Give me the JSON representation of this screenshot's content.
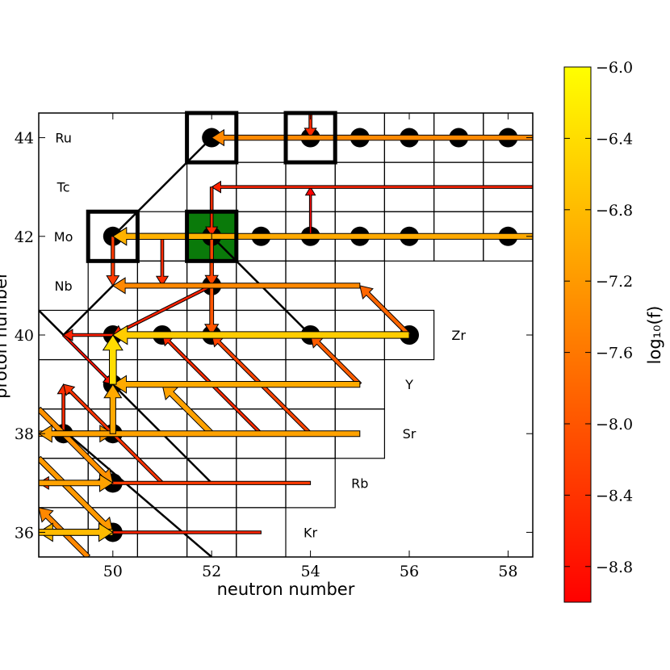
{
  "chart_data": {
    "type": "heatmap",
    "subtype": "nuclide chart reaction flow network",
    "xlabel": "neutron number",
    "ylabel": "proton number",
    "xlim": [
      48.5,
      58.5
    ],
    "ylim": [
      35.5,
      44.5
    ],
    "xticks": [
      50,
      52,
      54,
      56,
      58
    ],
    "yticks": [
      36,
      38,
      40,
      42,
      44
    ],
    "colorbar": {
      "label": "log₁₀(f)",
      "range": [
        -9.0,
        -6.0
      ],
      "ticks": [
        -6.0,
        -6.4,
        -6.8,
        -7.2,
        -7.6,
        -8.0,
        -8.4,
        -8.8
      ],
      "tick_labels": [
        "−6.0",
        "−6.4",
        "−6.8",
        "−7.2",
        "−7.6",
        "−8.0",
        "−8.4",
        "−8.8"
      ],
      "colors": [
        "#ff0000",
        "#ff8000",
        "#ffff00"
      ]
    },
    "element_labels": [
      {
        "label": "Ru",
        "n": 49,
        "z": 44
      },
      {
        "label": "Tc",
        "n": 49,
        "z": 43
      },
      {
        "label": "Mo",
        "n": 49,
        "z": 42
      },
      {
        "label": "Nb",
        "n": 49,
        "z": 41
      },
      {
        "label": "Zr",
        "n": 57,
        "z": 40
      },
      {
        "label": "Y",
        "n": 56,
        "z": 39
      },
      {
        "label": "Sr",
        "n": 56,
        "z": 38
      },
      {
        "label": "Rb",
        "n": 55,
        "z": 37
      },
      {
        "label": "Kr",
        "n": 54,
        "z": 36
      }
    ],
    "isotope_rows": [
      {
        "z": 44,
        "n_min": 52,
        "n_max": 58
      },
      {
        "z": 43,
        "n_min": 52,
        "n_max": 58
      },
      {
        "z": 42,
        "n_min": 50,
        "n_max": 58
      },
      {
        "z": 41,
        "n_min": 50,
        "n_max": 55
      },
      {
        "z": 40,
        "n_min": 48,
        "n_max": 56
      },
      {
        "z": 39,
        "n_min": 48,
        "n_max": 55
      },
      {
        "z": 38,
        "n_min": 48,
        "n_max": 55
      },
      {
        "z": 37,
        "n_min": 48,
        "n_max": 54
      },
      {
        "z": 36,
        "n_min": 48,
        "n_max": 53
      }
    ],
    "stable_nuclei": [
      [
        52,
        44
      ],
      [
        54,
        44
      ],
      [
        55,
        44
      ],
      [
        56,
        44
      ],
      [
        57,
        44
      ],
      [
        58,
        44
      ],
      [
        50,
        42
      ],
      [
        52,
        42
      ],
      [
        53,
        42
      ],
      [
        54,
        42
      ],
      [
        55,
        42
      ],
      [
        56,
        42
      ],
      [
        58,
        42
      ],
      [
        52,
        41
      ],
      [
        50,
        40
      ],
      [
        51,
        40
      ],
      [
        52,
        40
      ],
      [
        54,
        40
      ],
      [
        56,
        40
      ],
      [
        50,
        39
      ],
      [
        49,
        38
      ],
      [
        50,
        38
      ],
      [
        50,
        37
      ],
      [
        50,
        36
      ]
    ],
    "p_nuclei": [
      [
        52,
        44
      ],
      [
        54,
        44
      ],
      [
        50,
        42
      ],
      [
        52,
        42
      ]
    ],
    "highlighted_nucleus": [
      52,
      42
    ],
    "flows": [
      {
        "from": [
          58.5,
          44
        ],
        "to": [
          52,
          44
        ],
        "log_f": -7.4
      },
      {
        "from": [
          54,
          44.5
        ],
        "to": [
          54,
          44
        ],
        "log_f": -8.5
      },
      {
        "from": [
          58.5,
          43
        ],
        "to": [
          52,
          43
        ],
        "log_f": -8.6
      },
      {
        "from": [
          54,
          42
        ],
        "to": [
          54,
          43
        ],
        "log_f": -9.0
      },
      {
        "from": [
          52,
          43
        ],
        "to": [
          52,
          42
        ],
        "log_f": -8.5
      },
      {
        "from": [
          58.5,
          42
        ],
        "to": [
          50,
          42
        ],
        "log_f": -7.0
      },
      {
        "from": [
          52,
          42
        ],
        "to": [
          50,
          42
        ],
        "log_f": -6.9
      },
      {
        "from": [
          50,
          42
        ],
        "to": [
          50,
          41
        ],
        "log_f": -8.3
      },
      {
        "from": [
          51,
          42
        ],
        "to": [
          51,
          41
        ],
        "log_f": -8.5
      },
      {
        "from": [
          52,
          42
        ],
        "to": [
          52,
          41
        ],
        "log_f": -8.2
      },
      {
        "from": [
          55,
          41
        ],
        "to": [
          50,
          41
        ],
        "log_f": -7.4
      },
      {
        "from": [
          56,
          40
        ],
        "to": [
          55,
          41
        ],
        "log_f": -7.8
      },
      {
        "from": [
          56,
          40
        ],
        "to": [
          50,
          40
        ],
        "log_f": -6.6
      },
      {
        "from": [
          52,
          41
        ],
        "to": [
          52,
          40
        ],
        "log_f": -8.0
      },
      {
        "from": [
          52,
          41
        ],
        "to": [
          50,
          40
        ],
        "log_f": -8.6
      },
      {
        "from": [
          51,
          40
        ],
        "to": [
          49,
          40
        ],
        "log_f": -8.6
      },
      {
        "from": [
          49,
          40
        ],
        "to": [
          50,
          39
        ],
        "log_f": -8.8
      },
      {
        "from": [
          50,
          39
        ],
        "to": [
          50,
          40
        ],
        "log_f": -6.4
      },
      {
        "from": [
          50,
          38
        ],
        "to": [
          50,
          39
        ],
        "log_f": -7.0
      },
      {
        "from": [
          55,
          39
        ],
        "to": [
          50,
          39
        ],
        "log_f": -7.0
      },
      {
        "from": [
          55,
          39
        ],
        "to": [
          54,
          40
        ],
        "log_f": -7.9
      },
      {
        "from": [
          54,
          38
        ],
        "to": [
          52,
          40
        ],
        "log_f": -8.2
      },
      {
        "from": [
          53,
          38
        ],
        "to": [
          51,
          40
        ],
        "log_f": -8.5
      },
      {
        "from": [
          52,
          38
        ],
        "to": [
          51,
          39
        ],
        "log_f": -7.1
      },
      {
        "from": [
          55,
          38
        ],
        "to": [
          48.5,
          38
        ],
        "log_f": -7.1
      },
      {
        "from": [
          53,
          39
        ],
        "to": [
          50,
          39
        ],
        "log_f": -8.0
      },
      {
        "from": [
          51,
          37
        ],
        "to": [
          49,
          39
        ],
        "log_f": -8.4
      },
      {
        "from": [
          54,
          37
        ],
        "to": [
          48.5,
          37
        ],
        "log_f": -8.3
      },
      {
        "from": [
          48.5,
          37.5
        ],
        "to": [
          50,
          36
        ],
        "log_f": -7.2
      },
      {
        "from": [
          48.5,
          38.5
        ],
        "to": [
          50,
          37
        ],
        "log_f": -7.3
      },
      {
        "from": [
          53,
          36
        ],
        "to": [
          48.5,
          36
        ],
        "log_f": -8.6
      },
      {
        "from": [
          50,
          36
        ],
        "to": [
          48.5,
          36
        ],
        "log_f": -6.8
      },
      {
        "from": [
          49,
          38
        ],
        "to": [
          49,
          39
        ],
        "log_f": -8.5
      },
      {
        "from": [
          48.5,
          36
        ],
        "to": [
          50,
          36
        ],
        "log_f": -6.8
      },
      {
        "from": [
          48.5,
          37
        ],
        "to": [
          50,
          37
        ],
        "log_f": -7.1
      },
      {
        "from": [
          48.5,
          38
        ],
        "to": [
          50,
          38
        ],
        "log_f": -7.2
      },
      {
        "from": [
          49.5,
          35.5
        ],
        "to": [
          48.5,
          36.5
        ],
        "log_f": -7.4
      }
    ],
    "black_lines": [
      [
        [
          50,
          42
        ],
        [
          52,
          44
        ]
      ],
      [
        [
          52,
          42
        ],
        [
          54,
          40
        ]
      ],
      [
        [
          49,
          40
        ],
        [
          50,
          41
        ]
      ],
      [
        [
          52,
          37
        ],
        [
          48.5,
          40.5
        ]
      ],
      [
        [
          48.5,
          36.5
        ],
        [
          49,
          36
        ]
      ],
      [
        [
          48.5,
          38.5
        ],
        [
          52,
          35.5
        ]
      ]
    ]
  }
}
